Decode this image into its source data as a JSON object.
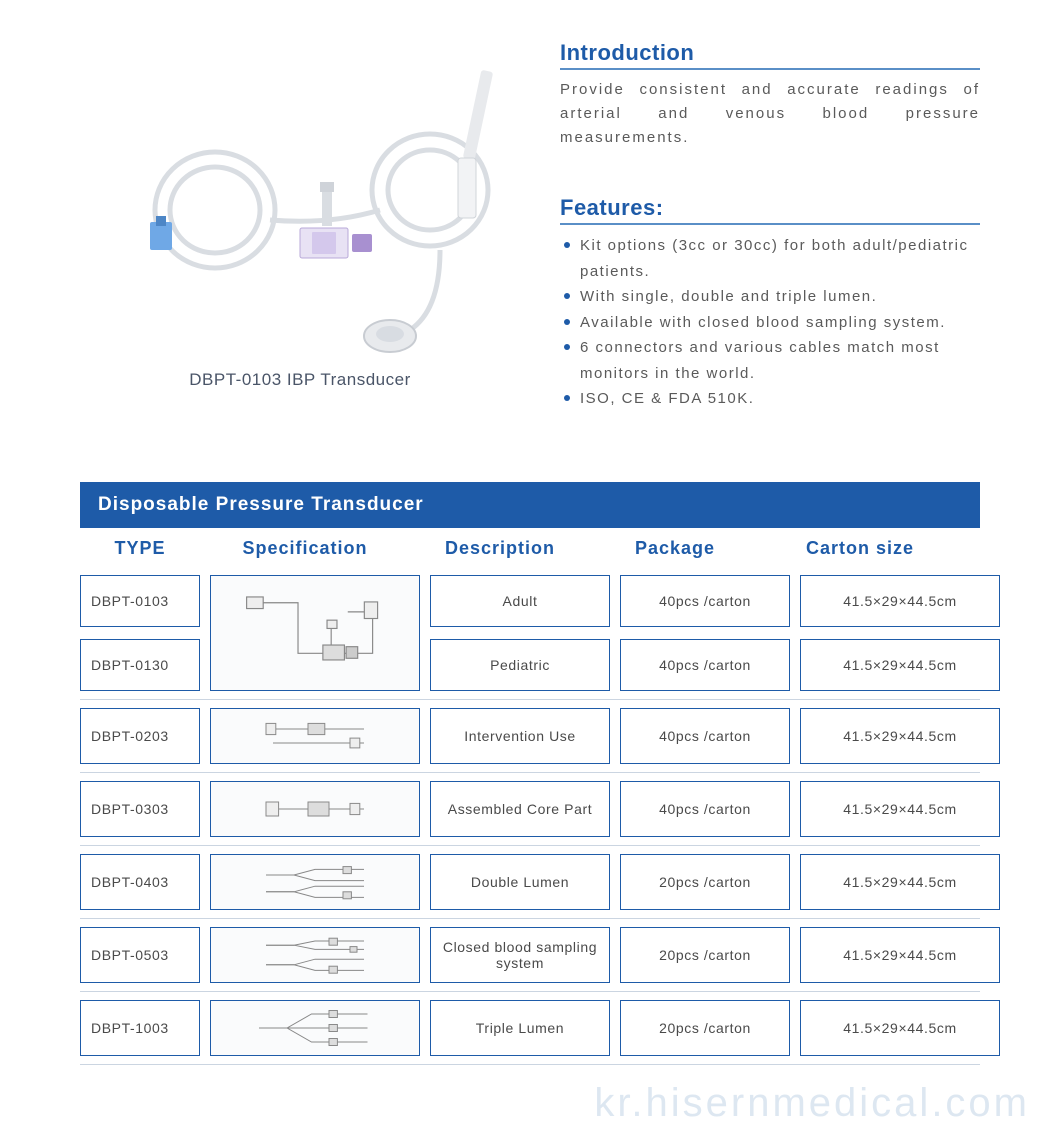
{
  "colors": {
    "title_blue": "#1e5ba8",
    "title_border": "#5a8fc7",
    "bullet": "#1e5ba8",
    "banner_bg": "#1e5ba8",
    "header_text": "#1e5ba8",
    "cell_border": "#1e5ba8",
    "row_sep": "#cbd5e1"
  },
  "product": {
    "caption": "DBPT-0103 IBP Transducer"
  },
  "introduction": {
    "title": "Introduction",
    "text": "Provide consistent and accurate readings of arterial and venous blood pressure measurements."
  },
  "features": {
    "title": "Features:",
    "items": [
      "Kit options (3cc or 30cc) for both adult/pediatric patients.",
      "With single, double and triple lumen.",
      "Available with closed blood sampling system.",
      "6 connectors and various cables match most monitors in the world.",
      "ISO, CE & FDA 510K."
    ]
  },
  "table": {
    "title": "Disposable Pressure Transducer",
    "columns": [
      "TYPE",
      "Specification",
      "Description",
      "Package",
      "Carton  size"
    ],
    "merged_group": {
      "types": [
        "DBPT-0103",
        "DBPT-0130"
      ],
      "descriptions": [
        "Adult",
        "Pediatric"
      ],
      "packages": [
        "40pcs /carton",
        "40pcs /carton"
      ],
      "cartons": [
        "41.5×29×44.5cm",
        "41.5×29×44.5cm"
      ]
    },
    "rows": [
      {
        "type": "DBPT-0203",
        "description": "Intervention Use",
        "package": "40pcs /carton",
        "carton": "41.5×29×44.5cm"
      },
      {
        "type": "DBPT-0303",
        "description": "Assembled Core Part",
        "package": "40pcs /carton",
        "carton": "41.5×29×44.5cm"
      },
      {
        "type": "DBPT-0403",
        "description": "Double Lumen",
        "package": "20pcs /carton",
        "carton": "41.5×29×44.5cm"
      },
      {
        "type": "DBPT-0503",
        "description": "Closed blood sampling system",
        "package": "20pcs /carton",
        "carton": "41.5×29×44.5cm"
      },
      {
        "type": "DBPT-1003",
        "description": "Triple Lumen",
        "package": "20pcs /carton",
        "carton": "41.5×29×44.5cm"
      }
    ]
  },
  "watermark": "kr.hisernmedical.com"
}
